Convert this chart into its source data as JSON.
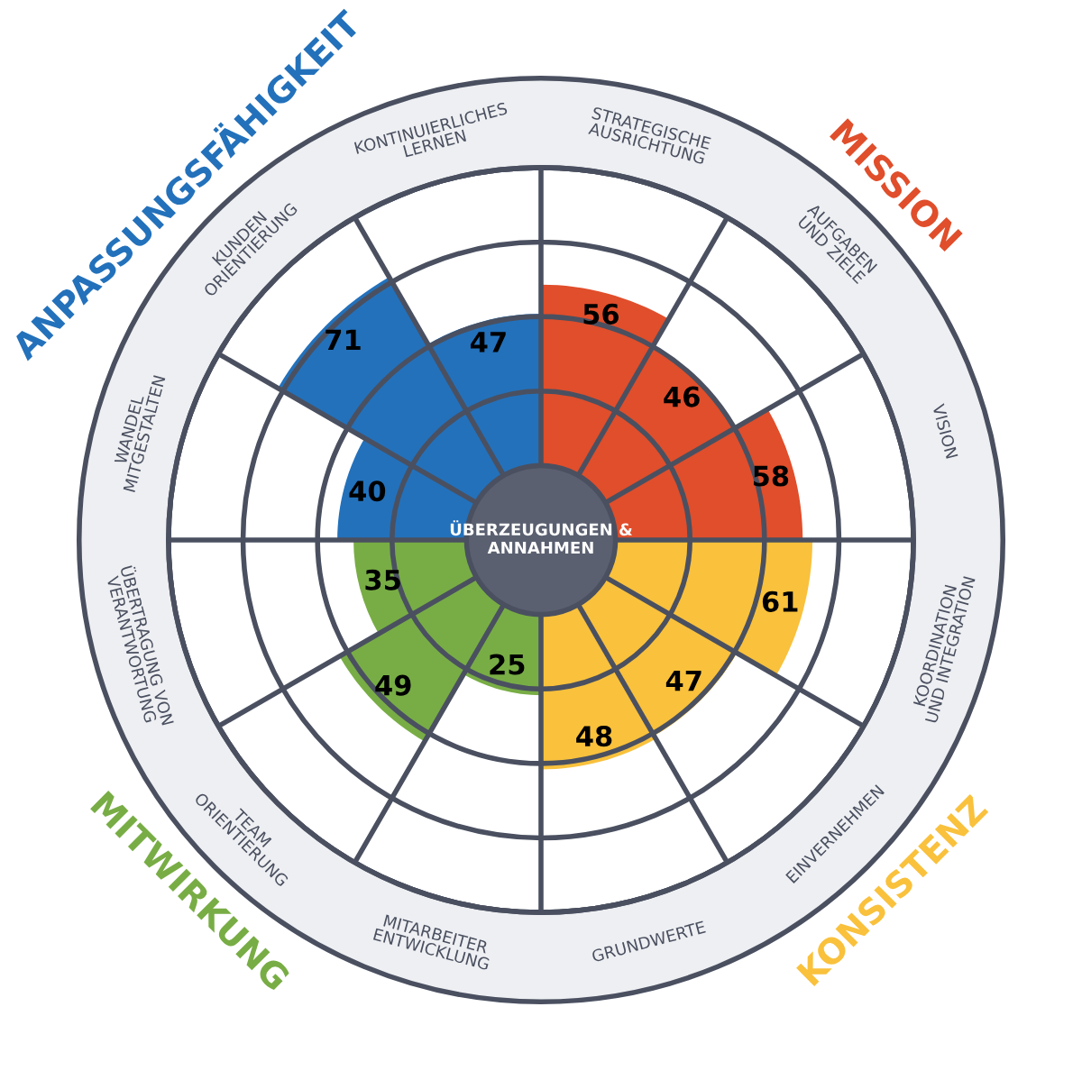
{
  "chart_data": {
    "type": "other",
    "data_labels": true,
    "categories": [
      "STRATEGISCHE\nAUSRICHTUNG",
      "AUFGABEN\nUND ZIELE",
      "VISION",
      "KOORDINATION\nUND INTEGRATION",
      "EINVERNEHMEN",
      "GRUNDWERTE",
      "MITARBEITER\nENTWICKLUNG",
      "TEAM\nORIENTIERUNG",
      "ÜBERTRAGUNG VON\nVERANTWORTUNG",
      "WANDEL\nMITGESTALTEN",
      "KUNDEN\nORIENTIERUNG",
      "KONTINUIERLICHES\nLERNEN"
    ],
    "series": [
      {
        "name": "MISSION",
        "color": "#e04e2b",
        "values": [
          56,
          46,
          58,
          null,
          null,
          null,
          null,
          null,
          null,
          null,
          null,
          null
        ]
      },
      {
        "name": "KONSISTENZ",
        "color": "#f9c13c",
        "values": [
          null,
          null,
          null,
          61,
          47,
          48,
          null,
          null,
          null,
          null,
          null,
          null
        ]
      },
      {
        "name": "MITWIRKUNG",
        "color": "#78ad45",
        "values": [
          null,
          null,
          null,
          null,
          null,
          null,
          25,
          49,
          35,
          null,
          null,
          null
        ]
      },
      {
        "name": "ANPASSUNGSFÄHIGKEIT",
        "color": "#2371bb",
        "values": [
          null,
          null,
          null,
          null,
          null,
          null,
          null,
          null,
          null,
          40,
          71,
          47
        ]
      }
    ],
    "annotations": [
      "ÜBERZEUGUNGEN &\nANNAHMEN"
    ]
  }
}
